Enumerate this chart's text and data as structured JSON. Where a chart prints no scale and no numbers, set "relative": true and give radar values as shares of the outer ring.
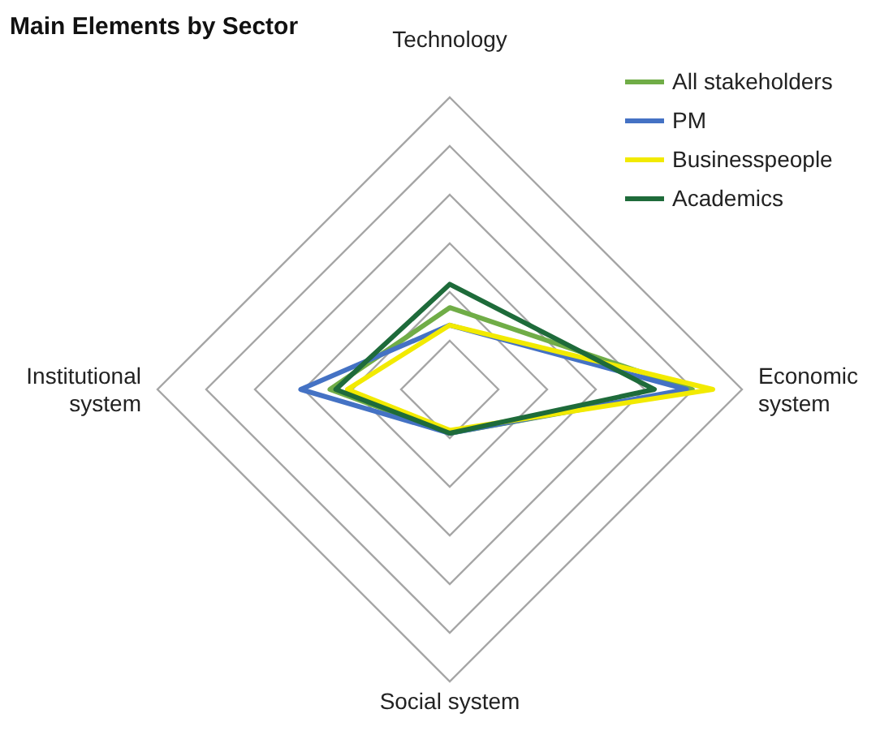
{
  "chart_data": {
    "type": "radar",
    "title": "Main Elements by Sector",
    "relative": true,
    "grid": true,
    "legend": "top right",
    "marker": "none",
    "categories": [
      "Technology",
      "Economic system",
      "Social system",
      "Institutional system"
    ],
    "series": [
      {
        "name": "All stakeholders",
        "color": "#70ad47",
        "values": [
          0.28,
          0.83,
          0.15,
          0.41
        ]
      },
      {
        "name": "PM",
        "color": "#4472c4",
        "values": [
          0.22,
          0.81,
          0.15,
          0.51
        ]
      },
      {
        "name": "Businesspeople",
        "color": "#f2ea00",
        "values": [
          0.22,
          0.9,
          0.14,
          0.35
        ]
      },
      {
        "name": "Academics",
        "color": "#1e6b3a",
        "values": [
          0.36,
          0.7,
          0.15,
          0.39
        ]
      }
    ]
  }
}
